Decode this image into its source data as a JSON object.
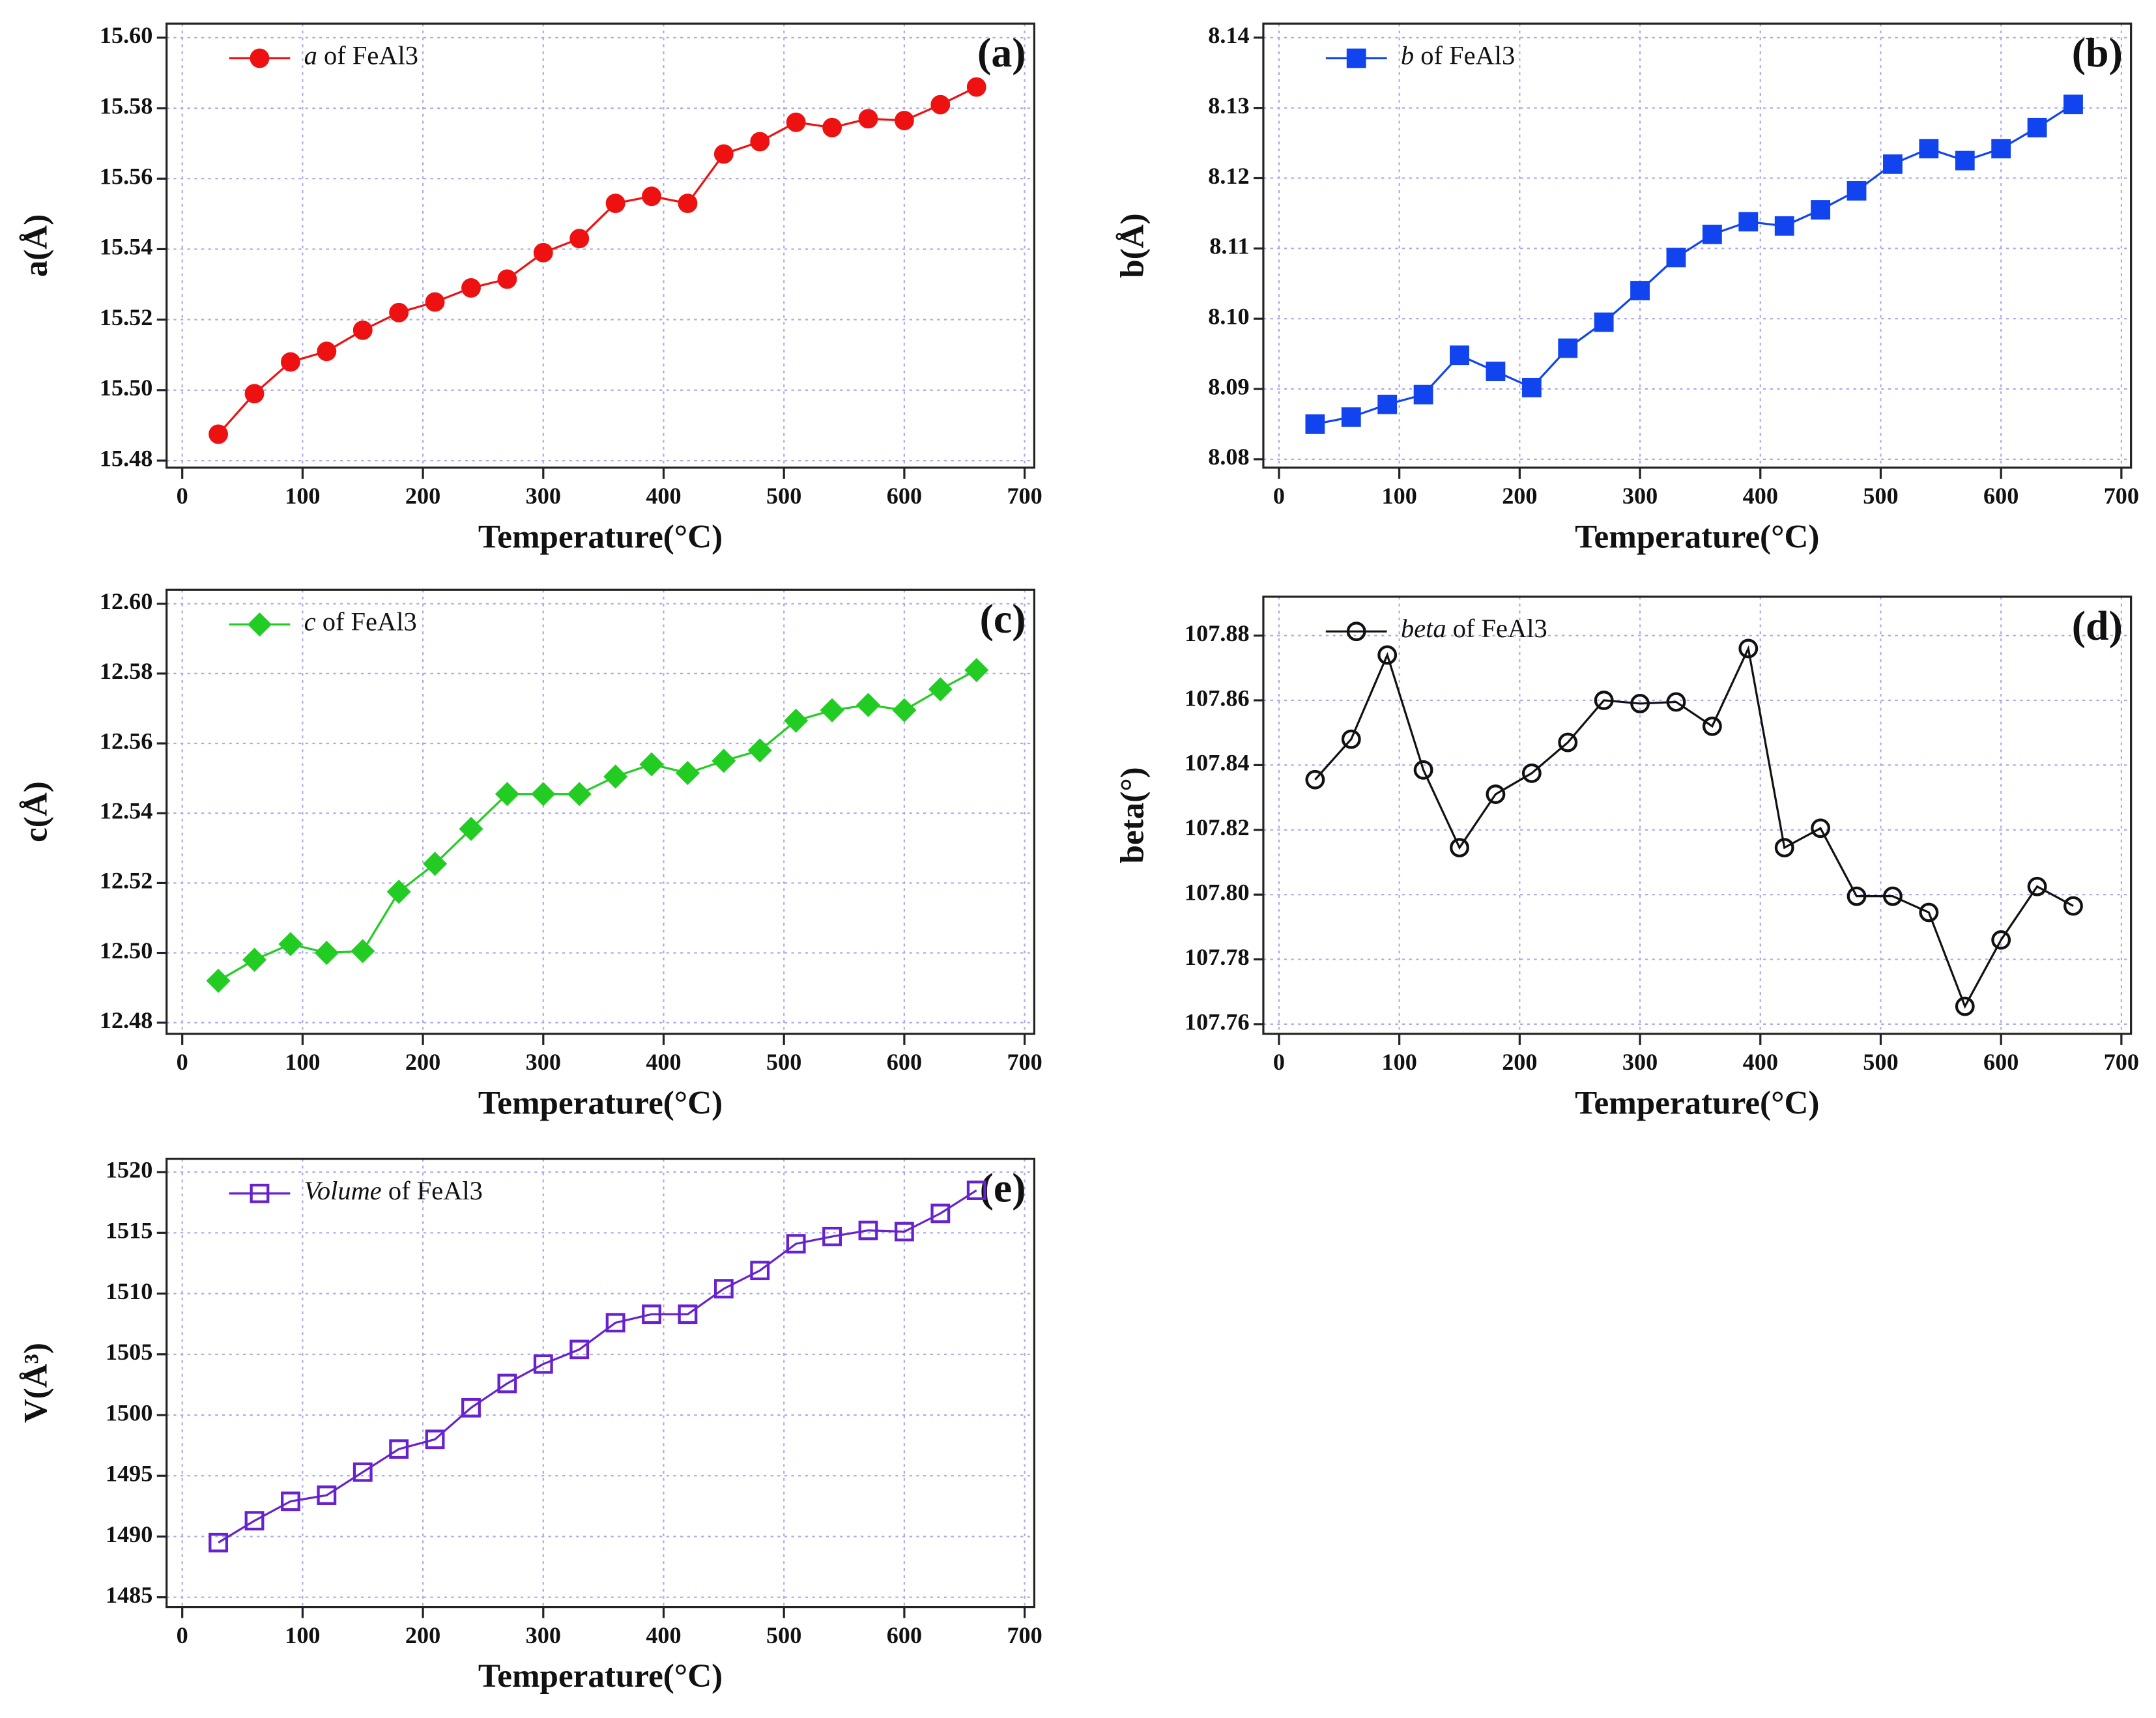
{
  "chart_data": [
    {
      "type": "line",
      "panel_label": "(a)",
      "xlabel": "Temperature(°C)",
      "ylabel": "a(Å)",
      "x": [
        30,
        60,
        90,
        120,
        150,
        180,
        210,
        240,
        270,
        300,
        330,
        360,
        390,
        420,
        450,
        480,
        510,
        540,
        570,
        600,
        630,
        660
      ],
      "series": [
        {
          "name": "a of FeAl3",
          "color": "#ee1111",
          "marker": "circle-filled",
          "values": [
            15.4875,
            15.499,
            15.508,
            15.511,
            15.517,
            15.522,
            15.525,
            15.529,
            15.5315,
            15.539,
            15.543,
            15.553,
            15.555,
            15.553,
            15.567,
            15.5705,
            15.576,
            15.5745,
            15.577,
            15.5765,
            15.581,
            15.586
          ]
        }
      ],
      "xlim": [
        -13,
        708
      ],
      "xticks": [
        0,
        100,
        200,
        300,
        400,
        500,
        600,
        700
      ],
      "ylim": [
        15.478,
        15.604
      ],
      "yticks": [
        15.48,
        {
          "value": 15.5,
          "label": "15.50"
        },
        15.52,
        15.54,
        15.56,
        15.58,
        {
          "value": 15.6,
          "label": "15.60"
        }
      ],
      "grid": true
    },
    {
      "type": "line",
      "panel_label": "(b)",
      "xlabel": "Temperature(°C)",
      "ylabel": "b(Å)",
      "x": [
        30,
        60,
        90,
        120,
        150,
        180,
        210,
        240,
        270,
        300,
        330,
        360,
        390,
        420,
        450,
        480,
        510,
        540,
        570,
        600,
        630,
        660
      ],
      "series": [
        {
          "name": "b of FeAl3",
          "color": "#1144ee",
          "marker": "square-filled",
          "values": [
            8.085,
            8.086,
            8.0878,
            8.0892,
            8.0948,
            8.0925,
            8.0902,
            8.0958,
            8.0995,
            8.104,
            8.1087,
            8.112,
            8.1138,
            8.1132,
            8.1155,
            8.1182,
            8.122,
            8.1242,
            8.1225,
            8.1242,
            8.1272,
            8.1305
          ]
        }
      ],
      "xlim": [
        -13,
        708
      ],
      "xticks": [
        0,
        100,
        200,
        300,
        400,
        500,
        600,
        700
      ],
      "ylim": [
        8.0788,
        8.142
      ],
      "yticks": [
        8.08,
        8.09,
        {
          "value": 8.1,
          "label": "8.10"
        },
        8.11,
        8.12,
        8.13,
        8.14
      ],
      "grid": true
    },
    {
      "type": "line",
      "panel_label": "(c)",
      "xlabel": "Temperature(°C)",
      "ylabel": "c(Å)",
      "x": [
        30,
        60,
        90,
        120,
        150,
        180,
        210,
        240,
        270,
        300,
        330,
        360,
        390,
        420,
        450,
        480,
        510,
        540,
        570,
        600,
        630,
        660
      ],
      "series": [
        {
          "name": "c of FeAl3",
          "color": "#22cc22",
          "marker": "diamond-filled",
          "values": [
            12.492,
            12.498,
            12.5025,
            12.5,
            12.5005,
            12.5175,
            12.5255,
            12.5355,
            12.5455,
            12.5455,
            12.5455,
            12.5505,
            12.554,
            12.5515,
            12.555,
            12.558,
            12.5665,
            12.5695,
            12.571,
            12.5695,
            12.5755,
            12.581
          ]
        }
      ],
      "xlim": [
        -13,
        708
      ],
      "xticks": [
        0,
        100,
        200,
        300,
        400,
        500,
        600,
        700
      ],
      "ylim": [
        12.4768,
        12.604
      ],
      "yticks": [
        12.48,
        {
          "value": 12.5,
          "label": "12.50"
        },
        12.52,
        12.54,
        12.56,
        12.58,
        {
          "value": 12.6,
          "label": "12.60"
        }
      ],
      "grid": true
    },
    {
      "type": "line",
      "panel_label": "(d)",
      "xlabel": "Temperature(°C)",
      "ylabel": "beta(°)",
      "x": [
        30,
        60,
        90,
        120,
        150,
        180,
        210,
        240,
        270,
        300,
        330,
        360,
        390,
        420,
        450,
        480,
        510,
        540,
        570,
        600,
        630,
        660
      ],
      "series": [
        {
          "name": "beta of FeAl3",
          "color": "#111111",
          "marker": "circle-open",
          "values": [
            107.8355,
            107.848,
            107.874,
            107.8385,
            107.8145,
            107.831,
            107.8375,
            107.847,
            107.86,
            107.859,
            107.8595,
            107.852,
            107.876,
            107.8145,
            107.8205,
            107.7995,
            107.7995,
            107.7945,
            107.7655,
            107.786,
            107.8025,
            107.7965
          ]
        }
      ],
      "xlim": [
        -13,
        708
      ],
      "xticks": [
        0,
        100,
        200,
        300,
        400,
        500,
        600,
        700
      ],
      "ylim": [
        107.757,
        107.892
      ],
      "yticks": [
        107.76,
        107.78,
        {
          "value": 107.8,
          "label": "107.80"
        },
        107.82,
        107.84,
        107.86,
        107.88
      ],
      "grid": true
    },
    {
      "type": "line",
      "panel_label": "(e)",
      "xlabel": "Temperature(°C)",
      "ylabel": "V(Å³)",
      "x": [
        30,
        60,
        90,
        120,
        150,
        180,
        210,
        240,
        270,
        300,
        330,
        360,
        390,
        420,
        450,
        480,
        510,
        540,
        570,
        600,
        630,
        660
      ],
      "series": [
        {
          "name": "Volume of FeAl3",
          "color": "#6622cc",
          "marker": "square-open",
          "values": [
            1489.5,
            1491.3,
            1492.9,
            1493.4,
            1495.3,
            1497.2,
            1498.0,
            1500.6,
            1502.6,
            1504.2,
            1505.4,
            1507.6,
            1508.3,
            1508.3,
            1510.4,
            1511.9,
            1514.1,
            1514.7,
            1515.2,
            1515.1,
            1516.6,
            1518.5
          ]
        }
      ],
      "xlim": [
        -13,
        708
      ],
      "xticks": [
        0,
        100,
        200,
        300,
        400,
        500,
        600,
        700
      ],
      "ylim": [
        1484.2,
        1521.1
      ],
      "yticks": [
        1485,
        1490,
        1495,
        1500,
        1505,
        1510,
        1515,
        1520
      ],
      "grid": true
    }
  ]
}
